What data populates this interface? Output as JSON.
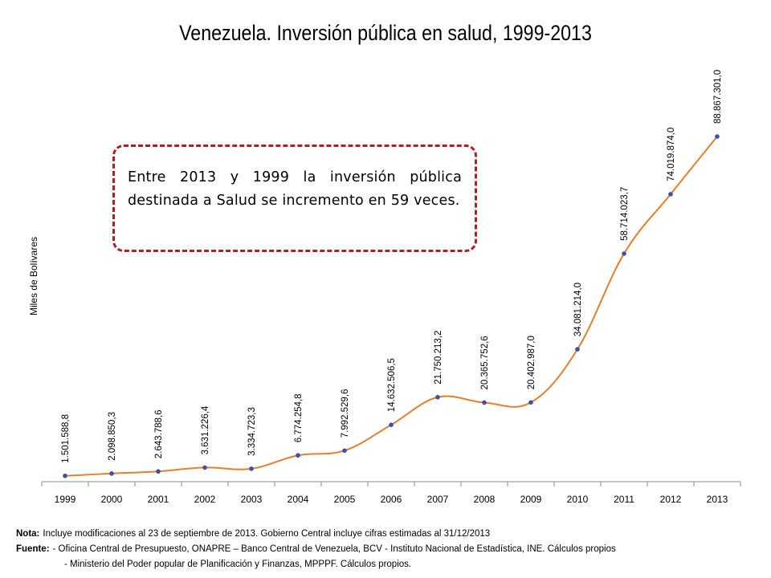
{
  "chart_data": {
    "type": "line",
    "title": "Venezuela. Inversión pública en salud, 1999-2013",
    "ylabel": "Miles de Bolívares",
    "xlabel": "",
    "categories": [
      "1999",
      "2000",
      "2001",
      "2002",
      "2003",
      "2004",
      "2005",
      "2006",
      "2007",
      "2008",
      "2009",
      "2010",
      "2011",
      "2012",
      "2013"
    ],
    "series": [
      {
        "values": [
          1501588.8,
          2098850.3,
          2643788.6,
          3631226.4,
          3334723.3,
          6774254.8,
          7992529.6,
          14632506.5,
          21750213.2,
          20365752.6,
          20402987.0,
          34081214.0,
          58714023.7,
          74019874.0,
          88867301.0
        ],
        "labels": [
          "1.501.588,8",
          "2.098.850,3",
          "2.643.788,6",
          "3.631.226,4",
          "3.334.723,3",
          "6.774.254,8",
          "7.992.529,6",
          "14.632.506,5",
          "21.750.213,2",
          "20.365.752,6",
          "20.402.987,0",
          "34.081.214,0",
          "58.714.023,7",
          "74.019.874,0",
          "88.867.301,0"
        ],
        "line_color": "#e87d2a",
        "marker_color": "#3d4fa8"
      }
    ],
    "ylim": [
      0,
      105000000
    ],
    "grid": false,
    "legend": "none"
  },
  "callout": {
    "text": "Entre 2013 y 1999 la inversión pública destinada a Salud se incremento en 59 veces.",
    "border_color": "#b02020"
  },
  "notes": {
    "nota_label": "Nota:",
    "nota_text": "Incluye modificaciones al 23 de septiembre de 2013. Gobierno Central incluye cifras estimadas al 31/12/2013",
    "fuente_label": "Fuente:",
    "fuente_line1": "- Oficina Central de Presupuesto, ONAPRE – Banco Central de Venezuela, BCV  - Instituto Nacional de Estadística, INE. Cálculos propios",
    "fuente_line2": "- Ministerio del Poder popular de Planificación y Finanzas, MPPPF. Cálculos propios."
  }
}
